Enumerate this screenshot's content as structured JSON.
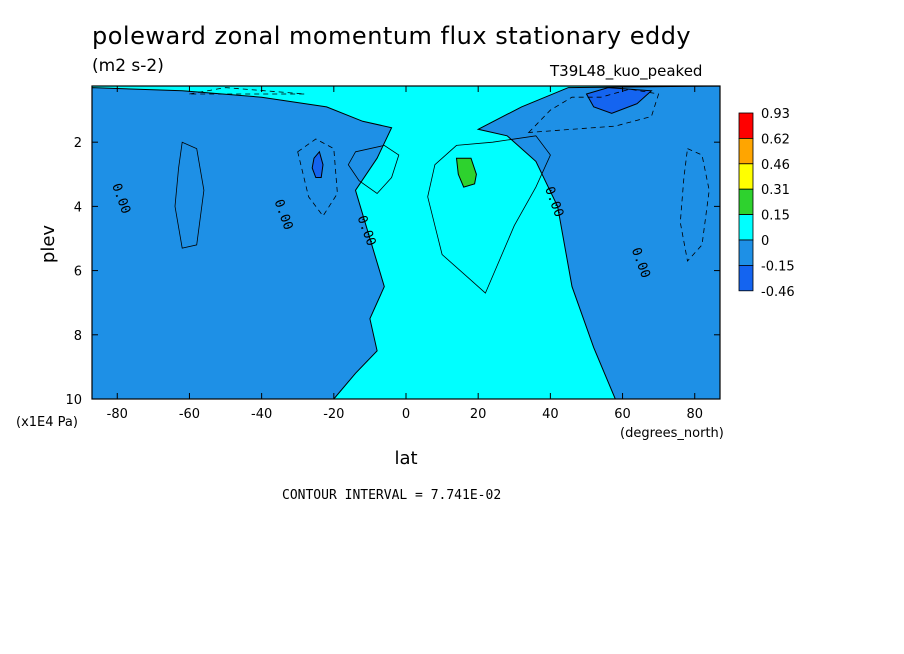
{
  "figure": {
    "title": "poleward zonal momentum flux stationary eddy",
    "units": "(m2 s-2)",
    "run_name": "T39L48_kuo_peaked",
    "y_scale_note": "(x1E4 Pa)",
    "x_units": "(degrees_north)",
    "contour_interval": "CONTOUR INTERVAL = 7.741E-02"
  },
  "colors": {
    "pos_0_015": "#00ffff",
    "neg_0_015": "#1e90e6",
    "neg_015_046": "#1464f0",
    "pos_015_031": "#2ed22e",
    "pos_031_046": "#ffff00",
    "pos_046_062": "#ffa500",
    "pos_062_093": "#ff0000"
  },
  "chart_data": {
    "type": "contour",
    "xlabel": "lat",
    "ylabel": "plev",
    "xlim": [
      -87,
      87
    ],
    "ylim": [
      10,
      0.25
    ],
    "x_ticks": [
      -80,
      -60,
      -40,
      -20,
      0,
      20,
      40,
      60,
      80
    ],
    "y_ticks": [
      2,
      4,
      6,
      8,
      10
    ],
    "contour_labels": [
      {
        "text": "0.00",
        "lat": -80,
        "plev": 3.8
      },
      {
        "text": "0.00",
        "lat": -35,
        "plev": 4.3
      },
      {
        "text": "0.00",
        "lat": -12,
        "plev": 4.8
      },
      {
        "text": "0.00",
        "lat": 40,
        "plev": 3.9
      },
      {
        "text": "0.00",
        "lat": 64,
        "plev": 5.8
      }
    ],
    "legend": {
      "levels": [
        "0.93",
        "0.62",
        "0.46",
        "0.31",
        "0.15",
        "0",
        "-0.15",
        "-0.46"
      ],
      "colors": [
        "#ff0000",
        "#ffa500",
        "#ffff00",
        "#2ed22e",
        "#00ffff",
        "#1e90e6",
        "#1464f0"
      ]
    },
    "regions": [
      {
        "level": "neg_0_015",
        "points": [
          [
            -87,
            10
          ],
          [
            -87,
            0.3
          ],
          [
            -62,
            0.4
          ],
          [
            -40,
            0.6
          ],
          [
            -22,
            0.9
          ],
          [
            -12,
            1.35
          ],
          [
            -4,
            1.55
          ],
          [
            -8,
            2.5
          ],
          [
            -14,
            3.5
          ],
          [
            -10,
            5
          ],
          [
            -6,
            6.5
          ],
          [
            -10,
            7.5
          ],
          [
            -8,
            8.5
          ],
          [
            -14,
            9.2
          ],
          [
            -20,
            10
          ]
        ]
      },
      {
        "level": "neg_0_015",
        "points": [
          [
            20,
            1.6
          ],
          [
            32,
            0.9
          ],
          [
            45,
            0.3
          ],
          [
            87,
            0.25
          ],
          [
            87,
            10
          ],
          [
            58,
            10
          ],
          [
            52,
            8.4
          ],
          [
            46,
            6.5
          ],
          [
            42,
            4
          ],
          [
            36,
            2.6
          ],
          [
            28,
            1.8
          ]
        ]
      },
      {
        "level": "neg_015_046",
        "points": [
          [
            50,
            0.5
          ],
          [
            56,
            0.3
          ],
          [
            68,
            0.4
          ],
          [
            64,
            0.8
          ],
          [
            57,
            1.1
          ],
          [
            52,
            0.9
          ]
        ]
      },
      {
        "level": "neg_015_046",
        "points": [
          [
            -25.5,
            2.5
          ],
          [
            -24,
            2.3
          ],
          [
            -23,
            2.7
          ],
          [
            -23.5,
            3.1
          ],
          [
            -25,
            3.1
          ],
          [
            -26,
            2.8
          ]
        ]
      },
      {
        "level": "pos_015_031",
        "points": [
          [
            14,
            2.5
          ],
          [
            18,
            2.5
          ],
          [
            19.5,
            3.0
          ],
          [
            19,
            3.3
          ],
          [
            16,
            3.4
          ],
          [
            14.5,
            3.0
          ]
        ]
      }
    ],
    "note": "Filled contours of stationary eddy zonal momentum flux; cyan (0 to 0.15) background with blue negative regions."
  }
}
